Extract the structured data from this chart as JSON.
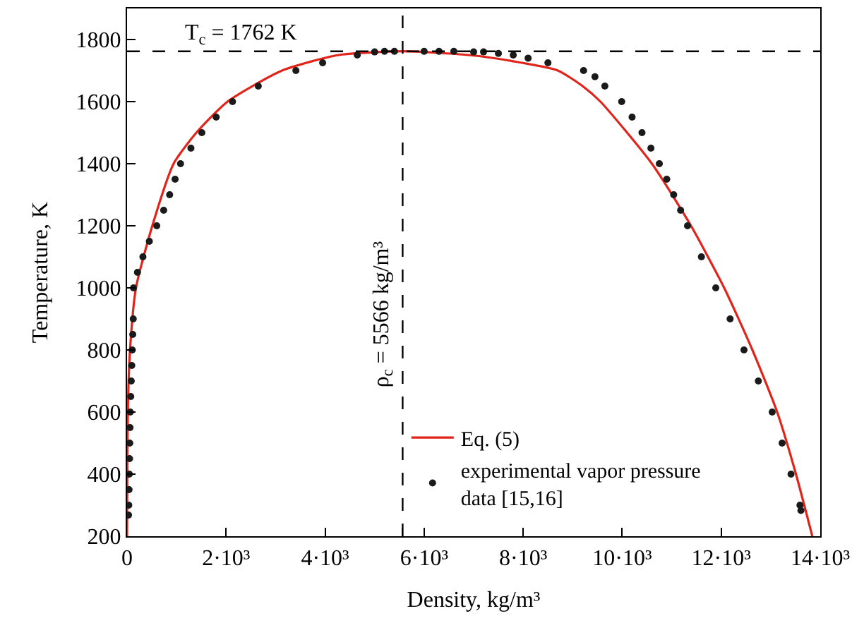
{
  "chart_data": {
    "type": "line",
    "xlabel": "Density, kg/m³",
    "ylabel": "Temperature, K",
    "xlim": [
      0,
      14000
    ],
    "ylim": [
      200,
      1900
    ],
    "xticks": [
      0,
      {
        "value": 2000,
        "label": "2·10³"
      },
      {
        "value": 4000,
        "label": "4·10³"
      },
      {
        "value": 5566,
        "label": null
      },
      {
        "value": 6000,
        "label": "6·10³"
      },
      {
        "value": 8000,
        "label": "8·10³"
      },
      {
        "value": 10000,
        "label": "10·10³"
      },
      {
        "value": 12000,
        "label": "12·10³"
      },
      {
        "value": 14000,
        "label": "14·10³"
      }
    ],
    "yticks": [
      200,
      400,
      600,
      800,
      1000,
      1200,
      1400,
      1600,
      1800,
      {
        "value": 1900,
        "label": null
      }
    ],
    "grid": false,
    "legend": "bottom",
    "series": [
      {
        "name": "Eq. (5)",
        "color": "#e2231a",
        "marker": "none",
        "line_style": "solid",
        "x": [
          0,
          5,
          15,
          60,
          180,
          510,
          940,
          1400,
          2030,
          3130,
          4270,
          5566,
          6900,
          7800,
          8700,
          9200,
          9560,
          10600,
          11390,
          12060,
          12630,
          13130,
          13510,
          13840
        ],
        "values": [
          200,
          400,
          600,
          800,
          1000,
          1200,
          1400,
          1500,
          1600,
          1700,
          1750,
          1762,
          1750,
          1730,
          1700,
          1650,
          1600,
          1400,
          1200,
          1000,
          800,
          600,
          400,
          200
        ]
      },
      {
        "name": "experimental vapor pressure\ndata [15,16]",
        "type": "scatter",
        "color": "#1a1a1a",
        "marker": "circle",
        "x": [
          30,
          35,
          40,
          45,
          50,
          55,
          60,
          65,
          75,
          85,
          95,
          105,
          115,
          125,
          130,
          210,
          320,
          450,
          600,
          740,
          860,
          970,
          1080,
          1290,
          1510,
          1800,
          2130,
          2650,
          3410,
          3950,
          4650,
          5000,
          5200,
          5400,
          6000,
          6300,
          6600,
          7000,
          7200,
          7500,
          7800,
          8100,
          8500,
          9220,
          9450,
          9650,
          9990,
          10200,
          10400,
          10580,
          10750,
          10900,
          11040,
          11180,
          11320,
          11600,
          11890,
          12180,
          12460,
          12750,
          13030,
          13230,
          13410,
          13590,
          13610
        ],
        "values": [
          268,
          300,
          350,
          400,
          450,
          500,
          550,
          600,
          650,
          700,
          750,
          800,
          850,
          900,
          1000,
          1050,
          1100,
          1150,
          1200,
          1250,
          1300,
          1350,
          1400,
          1450,
          1500,
          1550,
          1600,
          1650,
          1700,
          1725,
          1750,
          1760,
          1762,
          1762,
          1762,
          1762,
          1762,
          1760,
          1760,
          1755,
          1750,
          1740,
          1725,
          1700,
          1680,
          1650,
          1600,
          1550,
          1500,
          1450,
          1400,
          1350,
          1300,
          1250,
          1200,
          1100,
          1000,
          900,
          800,
          700,
          600,
          500,
          400,
          300,
          283
        ]
      }
    ],
    "ref_lines": [
      {
        "axis": "y",
        "value": 1762,
        "label": "T$_{c}$ = 1762 K",
        "color": "#000000",
        "line_style": "dashed"
      },
      {
        "axis": "x",
        "value": 5566,
        "label": "ρ$_{c}$ = 5566 kg/m³",
        "color": "#000000",
        "line_style": "dashed"
      }
    ]
  }
}
